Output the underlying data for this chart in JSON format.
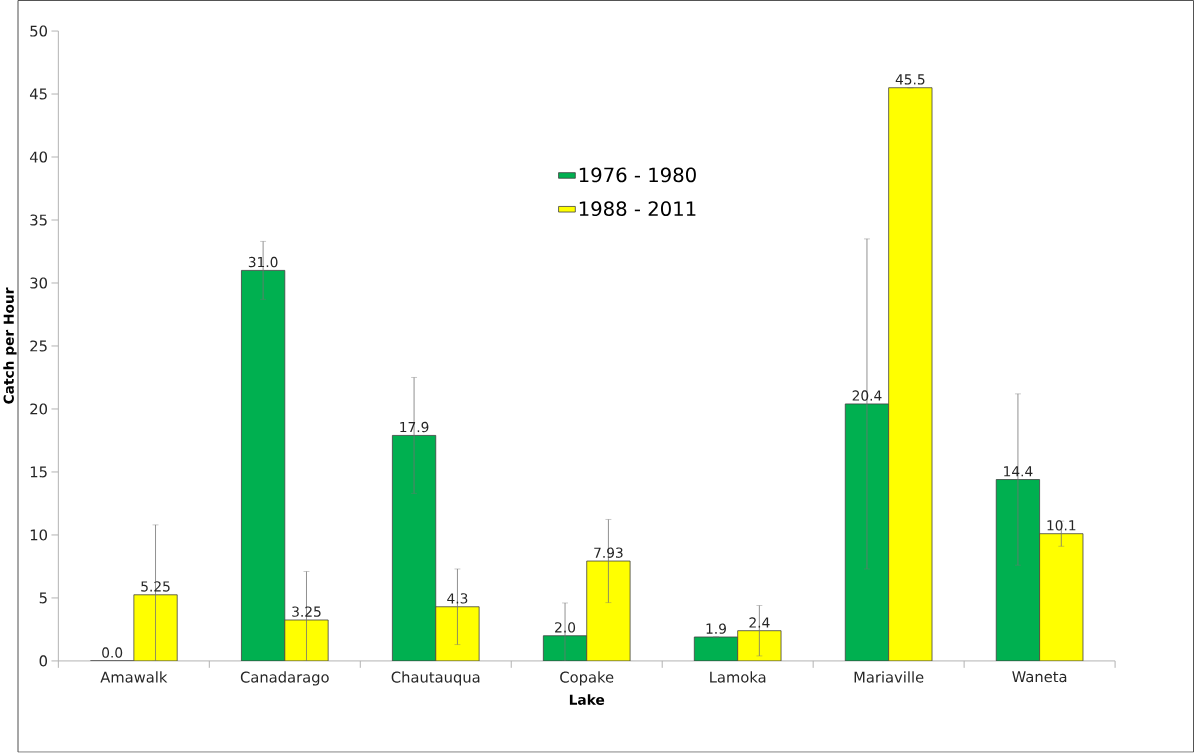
{
  "chart_data": {
    "type": "bar",
    "xlabel": "Lake",
    "ylabel": "Catch per Hour",
    "categories": [
      "Amawalk",
      "Canadarago",
      "Chautauqua",
      "Copake",
      "Lamoka",
      "Mariaville",
      "Waneta"
    ],
    "series": [
      {
        "name": "1976 - 1980",
        "color": "#00b050",
        "values": [
          0.0,
          31.0,
          17.9,
          2.0,
          1.9,
          20.4,
          14.4
        ],
        "value_labels": [
          "0.0",
          "31.0",
          "17.9",
          "2.0",
          "1.9",
          "20.4",
          "14.4"
        ],
        "errors": [
          null,
          2.3,
          4.6,
          [
            0,
            4.6
          ],
          null,
          13.1,
          6.8
        ]
      },
      {
        "name": "1988 - 2011",
        "color": "#ffff00",
        "values": [
          5.25,
          3.25,
          4.3,
          7.93,
          2.4,
          45.5,
          10.1
        ],
        "value_labels": [
          "5.25",
          "3.25",
          "4.3",
          "7.93",
          "2.4",
          "45.5",
          "10.1"
        ],
        "errors": [
          [
            0,
            10.8
          ],
          [
            0,
            7.1
          ],
          3.0,
          3.3,
          2.0,
          null,
          1.0
        ]
      }
    ],
    "ylim": [
      0,
      50
    ],
    "yticks": [
      0,
      5,
      10,
      15,
      20,
      25,
      30,
      35,
      40,
      45,
      50
    ],
    "legend": "top"
  }
}
